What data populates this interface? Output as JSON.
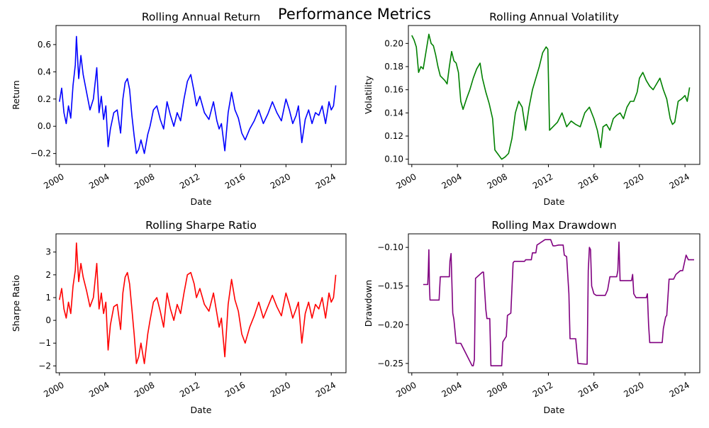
{
  "figure": {
    "title": "Performance Metrics"
  },
  "chart_data": [
    {
      "type": "line",
      "title": "Rolling Annual Return",
      "xlabel": "Date",
      "ylabel": "Return",
      "color": "#0000ff",
      "xlim": [
        1999.7,
        2025.3
      ],
      "ylim": [
        -0.28,
        0.74
      ],
      "xticks": [
        2000,
        2004,
        2008,
        2012,
        2016,
        2020,
        2024
      ],
      "xtick_labels": [
        "2000",
        "2004",
        "2008",
        "2012",
        "2016",
        "2020",
        "2024"
      ],
      "yticks": [
        -0.2,
        0.0,
        0.2,
        0.4,
        0.6
      ],
      "ytick_labels": [
        "−0.2",
        "0.0",
        "0.2",
        "0.4",
        "0.6"
      ],
      "x": [
        2000.0,
        2000.2,
        2000.4,
        2000.6,
        2000.8,
        2001.0,
        2001.2,
        2001.4,
        2001.5,
        2001.7,
        2001.9,
        2002.1,
        2002.4,
        2002.7,
        2003.0,
        2003.3,
        2003.5,
        2003.7,
        2003.9,
        2004.1,
        2004.3,
        2004.5,
        2004.8,
        2005.1,
        2005.4,
        2005.6,
        2005.8,
        2006.0,
        2006.2,
        2006.4,
        2006.6,
        2006.8,
        2007.0,
        2007.2,
        2007.5,
        2007.8,
        2008.0,
        2008.3,
        2008.6,
        2008.9,
        2009.2,
        2009.5,
        2009.8,
        2010.1,
        2010.4,
        2010.7,
        2011.0,
        2011.3,
        2011.6,
        2011.9,
        2012.1,
        2012.4,
        2012.8,
        2013.2,
        2013.6,
        2013.9,
        2014.1,
        2014.3,
        2014.6,
        2014.9,
        2015.2,
        2015.5,
        2015.8,
        2016.1,
        2016.4,
        2016.8,
        2017.2,
        2017.6,
        2018.0,
        2018.4,
        2018.8,
        2019.2,
        2019.6,
        2020.0,
        2020.3,
        2020.6,
        2020.9,
        2021.1,
        2021.4,
        2021.7,
        2022.0,
        2022.3,
        2022.6,
        2022.9,
        2023.2,
        2023.5,
        2023.8,
        2024.0,
        2024.2,
        2024.4
      ],
      "values": [
        0.18,
        0.28,
        0.1,
        0.02,
        0.15,
        0.06,
        0.3,
        0.45,
        0.66,
        0.35,
        0.52,
        0.38,
        0.25,
        0.12,
        0.2,
        0.43,
        0.1,
        0.22,
        0.05,
        0.15,
        -0.15,
        -0.02,
        0.1,
        0.12,
        -0.05,
        0.2,
        0.32,
        0.35,
        0.27,
        0.08,
        -0.07,
        -0.2,
        -0.17,
        -0.1,
        -0.2,
        -0.06,
        0.0,
        0.12,
        0.15,
        0.05,
        -0.02,
        0.18,
        0.08,
        0.0,
        0.1,
        0.04,
        0.2,
        0.33,
        0.38,
        0.25,
        0.15,
        0.22,
        0.1,
        0.05,
        0.18,
        0.04,
        -0.02,
        0.02,
        -0.18,
        0.1,
        0.25,
        0.12,
        0.06,
        -0.05,
        -0.1,
        -0.02,
        0.04,
        0.12,
        0.02,
        0.09,
        0.18,
        0.1,
        0.04,
        0.2,
        0.12,
        0.02,
        0.08,
        0.15,
        -0.12,
        0.05,
        0.12,
        0.02,
        0.1,
        0.08,
        0.15,
        0.02,
        0.18,
        0.12,
        0.15,
        0.3
      ]
    },
    {
      "type": "line",
      "title": "Rolling Annual Volatility",
      "xlabel": "Date",
      "ylabel": "Volatility",
      "color": "#008000",
      "xlim": [
        1999.7,
        2025.3
      ],
      "ylim": [
        0.0955,
        0.2155
      ],
      "xticks": [
        2000,
        2004,
        2008,
        2012,
        2016,
        2020,
        2024
      ],
      "xtick_labels": [
        "2000",
        "2004",
        "2008",
        "2012",
        "2016",
        "2020",
        "2024"
      ],
      "yticks": [
        0.1,
        0.12,
        0.14,
        0.16,
        0.18,
        0.2
      ],
      "ytick_labels": [
        "0.10",
        "0.12",
        "0.14",
        "0.16",
        "0.18",
        "0.20"
      ],
      "x": [
        2000.0,
        2000.2,
        2000.4,
        2000.6,
        2000.8,
        2001.0,
        2001.3,
        2001.5,
        2001.7,
        2001.9,
        2002.1,
        2002.3,
        2002.5,
        2002.7,
        2002.9,
        2003.1,
        2003.3,
        2003.5,
        2003.7,
        2003.9,
        2004.1,
        2004.3,
        2004.5,
        2004.8,
        2005.1,
        2005.4,
        2005.7,
        2006.0,
        2006.2,
        2006.5,
        2006.8,
        2007.1,
        2007.3,
        2007.6,
        2007.9,
        2008.2,
        2008.5,
        2008.8,
        2009.1,
        2009.4,
        2009.7,
        2010.0,
        2010.3,
        2010.6,
        2010.9,
        2011.2,
        2011.5,
        2011.8,
        2011.95,
        2012.1,
        2012.4,
        2012.8,
        2013.2,
        2013.6,
        2014.0,
        2014.4,
        2014.8,
        2015.2,
        2015.6,
        2016.0,
        2016.3,
        2016.6,
        2016.8,
        2017.1,
        2017.4,
        2017.7,
        2018.0,
        2018.3,
        2018.6,
        2018.9,
        2019.2,
        2019.5,
        2019.8,
        2020.0,
        2020.3,
        2020.6,
        2020.9,
        2021.2,
        2021.5,
        2021.8,
        2022.1,
        2022.4,
        2022.7,
        2022.9,
        2023.1,
        2023.4,
        2023.7,
        2024.0,
        2024.2,
        2024.4
      ],
      "values": [
        0.207,
        0.203,
        0.197,
        0.175,
        0.18,
        0.178,
        0.196,
        0.208,
        0.2,
        0.198,
        0.19,
        0.18,
        0.172,
        0.17,
        0.168,
        0.165,
        0.18,
        0.193,
        0.185,
        0.183,
        0.175,
        0.15,
        0.143,
        0.152,
        0.16,
        0.17,
        0.178,
        0.183,
        0.17,
        0.158,
        0.148,
        0.135,
        0.108,
        0.104,
        0.1,
        0.102,
        0.105,
        0.118,
        0.14,
        0.15,
        0.145,
        0.125,
        0.145,
        0.16,
        0.17,
        0.18,
        0.192,
        0.197,
        0.195,
        0.125,
        0.128,
        0.132,
        0.14,
        0.128,
        0.133,
        0.13,
        0.128,
        0.14,
        0.145,
        0.135,
        0.125,
        0.11,
        0.128,
        0.13,
        0.125,
        0.135,
        0.138,
        0.14,
        0.135,
        0.145,
        0.15,
        0.15,
        0.158,
        0.17,
        0.175,
        0.168,
        0.163,
        0.16,
        0.165,
        0.17,
        0.16,
        0.152,
        0.135,
        0.13,
        0.132,
        0.15,
        0.152,
        0.155,
        0.15,
        0.162
      ]
    },
    {
      "type": "line",
      "title": "Rolling Sharpe Ratio",
      "xlabel": "Date",
      "ylabel": "Sharpe Ratio",
      "color": "#ff0000",
      "xlim": [
        1999.7,
        2025.3
      ],
      "ylim": [
        -2.3,
        3.8
      ],
      "xticks": [
        2000,
        2004,
        2008,
        2012,
        2016,
        2020,
        2024
      ],
      "xtick_labels": [
        "2000",
        "2004",
        "2008",
        "2012",
        "2016",
        "2020",
        "2024"
      ],
      "yticks": [
        -2,
        -1,
        0,
        1,
        2,
        3
      ],
      "ytick_labels": [
        "−2",
        "−1",
        "0",
        "1",
        "2",
        "3"
      ],
      "x": [
        2000.0,
        2000.2,
        2000.4,
        2000.6,
        2000.8,
        2001.0,
        2001.2,
        2001.4,
        2001.5,
        2001.7,
        2001.9,
        2002.1,
        2002.4,
        2002.7,
        2003.0,
        2003.3,
        2003.5,
        2003.7,
        2003.9,
        2004.1,
        2004.3,
        2004.5,
        2004.8,
        2005.1,
        2005.4,
        2005.6,
        2005.8,
        2006.0,
        2006.2,
        2006.4,
        2006.6,
        2006.8,
        2007.0,
        2007.2,
        2007.5,
        2007.8,
        2008.0,
        2008.3,
        2008.6,
        2008.9,
        2009.2,
        2009.5,
        2009.8,
        2010.1,
        2010.4,
        2010.7,
        2011.0,
        2011.3,
        2011.6,
        2011.9,
        2012.1,
        2012.4,
        2012.8,
        2013.2,
        2013.6,
        2013.9,
        2014.1,
        2014.3,
        2014.6,
        2014.9,
        2015.2,
        2015.5,
        2015.8,
        2016.1,
        2016.4,
        2016.8,
        2017.2,
        2017.6,
        2018.0,
        2018.4,
        2018.8,
        2019.2,
        2019.6,
        2020.0,
        2020.3,
        2020.6,
        2020.9,
        2021.1,
        2021.4,
        2021.7,
        2022.0,
        2022.3,
        2022.6,
        2022.9,
        2023.2,
        2023.5,
        2023.8,
        2024.0,
        2024.2,
        2024.4
      ],
      "values": [
        0.9,
        1.4,
        0.5,
        0.1,
        0.8,
        0.3,
        1.5,
        2.2,
        3.4,
        1.7,
        2.5,
        1.9,
        1.3,
        0.6,
        1.0,
        2.5,
        0.5,
        1.2,
        0.3,
        0.8,
        -1.3,
        -0.2,
        0.6,
        0.7,
        -0.4,
        1.2,
        1.9,
        2.1,
        1.6,
        0.5,
        -0.6,
        -1.9,
        -1.6,
        -1.0,
        -1.9,
        -0.6,
        0.0,
        0.8,
        1.0,
        0.4,
        -0.3,
        1.2,
        0.5,
        0.0,
        0.7,
        0.3,
        1.2,
        2.0,
        2.1,
        1.6,
        1.0,
        1.4,
        0.7,
        0.4,
        1.2,
        0.3,
        -0.3,
        0.1,
        -1.6,
        0.7,
        1.8,
        0.9,
        0.4,
        -0.6,
        -1.0,
        -0.3,
        0.2,
        0.8,
        0.1,
        0.6,
        1.1,
        0.6,
        0.2,
        1.2,
        0.7,
        0.1,
        0.5,
        0.8,
        -1.0,
        0.3,
        0.8,
        0.1,
        0.7,
        0.5,
        1.0,
        0.1,
        1.2,
        0.8,
        1.0,
        2.0
      ]
    },
    {
      "type": "line",
      "title": "Rolling Max Drawdown",
      "xlabel": "Date",
      "ylabel": "Drawdown",
      "color": "#800080",
      "xlim": [
        1999.7,
        2025.3
      ],
      "ylim": [
        -0.262,
        -0.0825
      ],
      "xticks": [
        2000,
        2004,
        2008,
        2012,
        2016,
        2020,
        2024
      ],
      "xtick_labels": [
        "2000",
        "2004",
        "2008",
        "2012",
        "2016",
        "2020",
        "2024"
      ],
      "yticks": [
        -0.25,
        -0.2,
        -0.15,
        -0.1
      ],
      "ytick_labels": [
        "−0.25",
        "−0.20",
        "−0.15",
        "−0.10"
      ],
      "x": [
        2001.0,
        2001.4,
        2001.45,
        2001.5,
        2001.55,
        2001.6,
        2002.4,
        2002.5,
        2003.3,
        2003.35,
        2003.45,
        2003.6,
        2003.7,
        2003.9,
        2004.3,
        2005.3,
        2005.4,
        2005.5,
        2005.6,
        2006.2,
        2006.3,
        2006.5,
        2006.6,
        2006.85,
        2006.95,
        2007.9,
        2008.0,
        2008.3,
        2008.4,
        2008.6,
        2008.7,
        2008.9,
        2009.0,
        2009.9,
        2010.0,
        2010.5,
        2010.6,
        2010.9,
        2011.0,
        2011.7,
        2012.2,
        2012.4,
        2012.6,
        2012.9,
        2013.3,
        2013.4,
        2013.6,
        2013.8,
        2013.9,
        2014.0,
        2014.4,
        2014.6,
        2015.3,
        2015.4,
        2015.5,
        2015.6,
        2015.7,
        2015.8,
        2016.0,
        2016.2,
        2017.0,
        2017.2,
        2017.4,
        2018.0,
        2018.1,
        2018.2,
        2018.3,
        2019.3,
        2019.4,
        2019.5,
        2019.7,
        2020.6,
        2020.7,
        2020.8,
        2020.9,
        2022.0,
        2022.1,
        2022.3,
        2022.4,
        2022.6,
        2023.0,
        2023.2,
        2023.6,
        2023.8,
        2024.1,
        2024.3,
        2024.8
      ],
      "values": [
        -0.148,
        -0.148,
        -0.13,
        -0.103,
        -0.15,
        -0.168,
        -0.168,
        -0.138,
        -0.138,
        -0.118,
        -0.108,
        -0.185,
        -0.193,
        -0.224,
        -0.224,
        -0.253,
        -0.253,
        -0.245,
        -0.14,
        -0.132,
        -0.132,
        -0.18,
        -0.192,
        -0.192,
        -0.253,
        -0.253,
        -0.222,
        -0.215,
        -0.188,
        -0.186,
        -0.185,
        -0.12,
        -0.118,
        -0.118,
        -0.116,
        -0.116,
        -0.107,
        -0.107,
        -0.097,
        -0.09,
        -0.09,
        -0.098,
        -0.098,
        -0.097,
        -0.097,
        -0.11,
        -0.112,
        -0.16,
        -0.218,
        -0.218,
        -0.218,
        -0.25,
        -0.251,
        -0.251,
        -0.13,
        -0.1,
        -0.103,
        -0.15,
        -0.16,
        -0.162,
        -0.162,
        -0.155,
        -0.138,
        -0.138,
        -0.13,
        -0.093,
        -0.143,
        -0.143,
        -0.135,
        -0.16,
        -0.165,
        -0.165,
        -0.16,
        -0.2,
        -0.223,
        -0.223,
        -0.205,
        -0.19,
        -0.188,
        -0.141,
        -0.141,
        -0.135,
        -0.13,
        -0.13,
        -0.11,
        -0.116,
        -0.116
      ]
    }
  ]
}
